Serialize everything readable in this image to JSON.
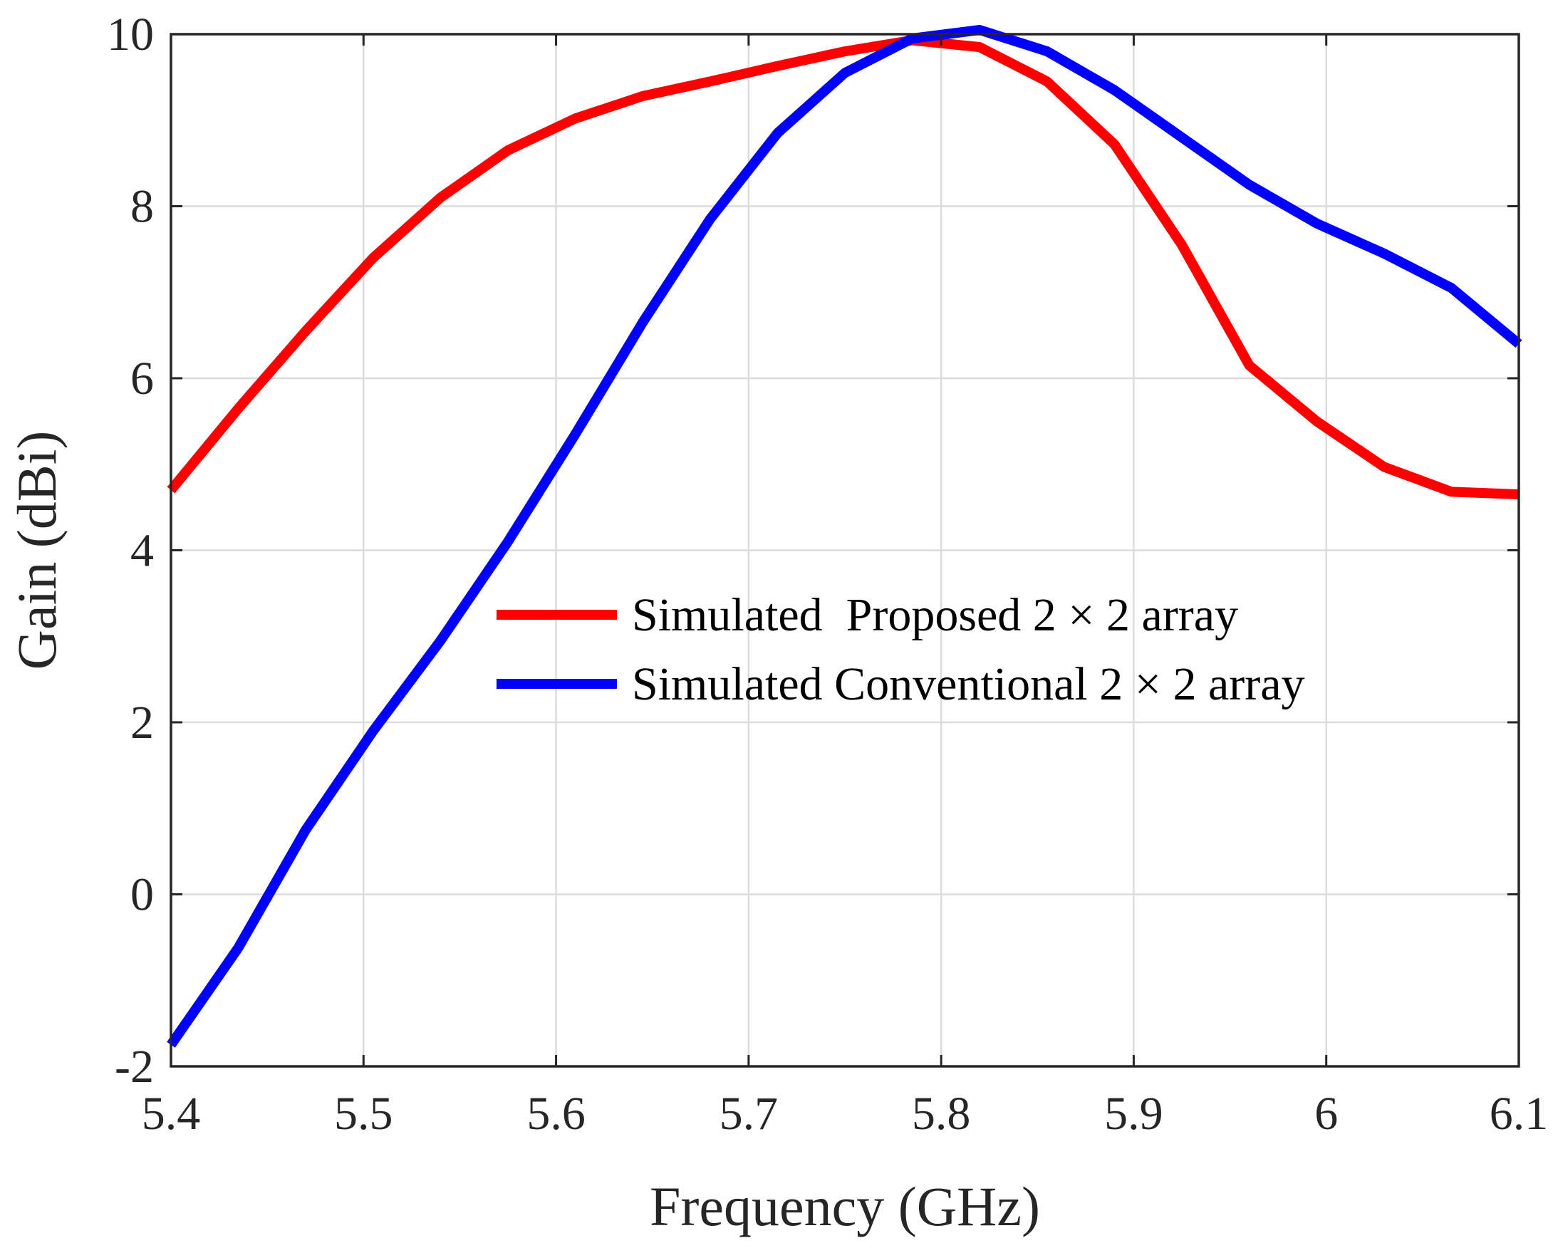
{
  "chart_data": {
    "type": "line",
    "title": "",
    "xlabel": "Frequency (GHz)",
    "ylabel": "Gain (dBi)",
    "xlim": [
      5.4,
      6.1
    ],
    "ylim": [
      -2,
      10
    ],
    "grid": true,
    "legend_position": "center-right",
    "x_ticks": [
      {
        "value": 5.4,
        "label": "5.4"
      },
      {
        "value": 5.5,
        "label": "5.5"
      },
      {
        "value": 5.6,
        "label": "5.6"
      },
      {
        "value": 5.7,
        "label": "5.7"
      },
      {
        "value": 5.8,
        "label": "5.8"
      },
      {
        "value": 5.9,
        "label": "5.9"
      },
      {
        "value": 6.0,
        "label": "6"
      },
      {
        "value": 6.1,
        "label": "6.1"
      }
    ],
    "y_ticks": [
      {
        "value": -2,
        "label": "-2"
      },
      {
        "value": 0,
        "label": "0"
      },
      {
        "value": 2,
        "label": "2"
      },
      {
        "value": 4,
        "label": "4"
      },
      {
        "value": 6,
        "label": "6"
      },
      {
        "value": 8,
        "label": "8"
      },
      {
        "value": 10,
        "label": "10"
      }
    ],
    "series": [
      {
        "name": "Simulated  Proposed 2 × 2 array",
        "color": "#ff0000",
        "x": [
          5.4,
          5.435,
          5.47,
          5.505,
          5.54,
          5.575,
          5.61,
          5.645,
          5.68,
          5.715,
          5.75,
          5.785,
          5.82,
          5.855,
          5.89,
          5.925,
          5.96,
          5.995,
          6.03,
          6.065,
          6.1
        ],
        "y": [
          4.7,
          5.65,
          6.55,
          7.4,
          8.1,
          8.65,
          9.02,
          9.28,
          9.45,
          9.63,
          9.8,
          9.93,
          9.85,
          9.45,
          8.72,
          7.55,
          6.15,
          5.5,
          4.97,
          4.68,
          4.65
        ]
      },
      {
        "name": "Simulated Conventional 2 × 2 array",
        "color": "#0000ff",
        "x": [
          5.4,
          5.435,
          5.47,
          5.505,
          5.54,
          5.575,
          5.61,
          5.645,
          5.68,
          5.715,
          5.75,
          5.785,
          5.82,
          5.855,
          5.89,
          5.925,
          5.96,
          5.995,
          6.03,
          6.065,
          6.1
        ],
        "y": [
          -1.75,
          -0.62,
          0.75,
          1.9,
          2.95,
          4.1,
          5.35,
          6.65,
          7.85,
          8.85,
          9.55,
          9.95,
          10.05,
          9.8,
          9.35,
          8.8,
          8.25,
          7.8,
          7.45,
          7.05,
          6.4
        ]
      }
    ]
  }
}
